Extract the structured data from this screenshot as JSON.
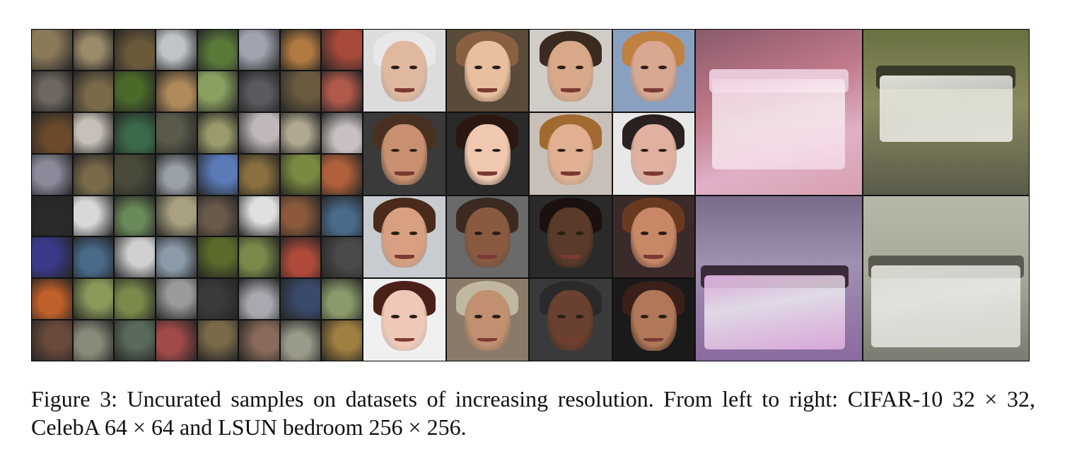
{
  "caption": "Figure 3: Uncurated samples on datasets of increasing resolution. From left to right: CIFAR-10 32 × 32, CelebA 64 × 64 and LSUN bedroom 256 × 256.",
  "panels": {
    "cifar": {
      "rows": 8,
      "cols": 8
    },
    "celeba": {
      "rows": 4,
      "cols": 4
    },
    "lsun": {
      "rows": 2,
      "cols": 2
    }
  },
  "colors": {
    "cifar": [
      "#8a7a5a",
      "#9b8a6a",
      "#6a5a3a",
      "#c0c4c8",
      "#5a7a3a",
      "#a0a4b0",
      "#b07a40",
      "#a84a3a",
      "#706860",
      "#7a6a4a",
      "#4a6a2a",
      "#b08a5a",
      "#8aa060",
      "#5a5a60",
      "#6a5a40",
      "#b05a4a",
      "#6a4a2a",
      "#c8c0b8",
      "#3a6a4a",
      "#5a5a4a",
      "#9a9a6a",
      "#c0b8b8",
      "#b0a890",
      "#c8c0c0",
      "#8a8a9a",
      "#7a6a4a",
      "#4a4a3a",
      "#9aa0a8",
      "#5a7ab8",
      "#8a7040",
      "#7a8a40",
      "#b0603a",
      "#2a2a2a",
      "#d8d8d8",
      "#6a8a5a",
      "#a8a080",
      "#6a5a4a",
      "#e0e0e0",
      "#8a5a3a",
      "#4a6a8a",
      "#3a3a8a",
      "#4a6a8a",
      "#d0d0d0",
      "#8a9aa8",
      "#5a6a2a",
      "#7a8a4a",
      "#b04a3a",
      "#4a4a4a",
      "#c0602a",
      "#8a9a5a",
      "#7a8a4a",
      "#9a9a9a",
      "#3a3a3a",
      "#a8a8b0",
      "#3a4a6a",
      "#8a9a6a",
      "#6a4a3a",
      "#8a8a7a",
      "#5a6a5a",
      "#a04a4a",
      "#7a6a4a",
      "#8a6a5a",
      "#9a9a8a",
      "#a08040"
    ],
    "celeba_bg": [
      "#dcdcdc",
      "#5a4a3a",
      "#d0ccc8",
      "#8aa0c0",
      "#3a3a3a",
      "#2a2a2a",
      "#c8c0b8",
      "#e8e8e8",
      "#c8ccd0",
      "#6a6a6a",
      "#2a2a2a",
      "#3a2a2a",
      "#f0f0f0",
      "#8a7a6a",
      "#3a3a3a",
      "#1a1a1a"
    ],
    "celeba_skin": [
      "#e0b8a0",
      "#e8c0a0",
      "#d8a888",
      "#d8a890",
      "#c89070",
      "#f0c8b0",
      "#e0b090",
      "#e0b0a0",
      "#d8a080",
      "#8a5a40",
      "#5a3a2a",
      "#c88868",
      "#f0c8b8",
      "#c09070",
      "#6a4030",
      "#b07858"
    ],
    "celeba_hair": [
      "#e8e8e8",
      "#8a6040",
      "#3a2a20",
      "#c08040",
      "#4a3020",
      "#2a1810",
      "#a06a30",
      "#2a2020",
      "#4a2a1a",
      "#3a2a20",
      "#1a1010",
      "#6a3a20",
      "#4a2018",
      "#c0b8a0",
      "#2a2a2a",
      "#3a2018"
    ]
  }
}
